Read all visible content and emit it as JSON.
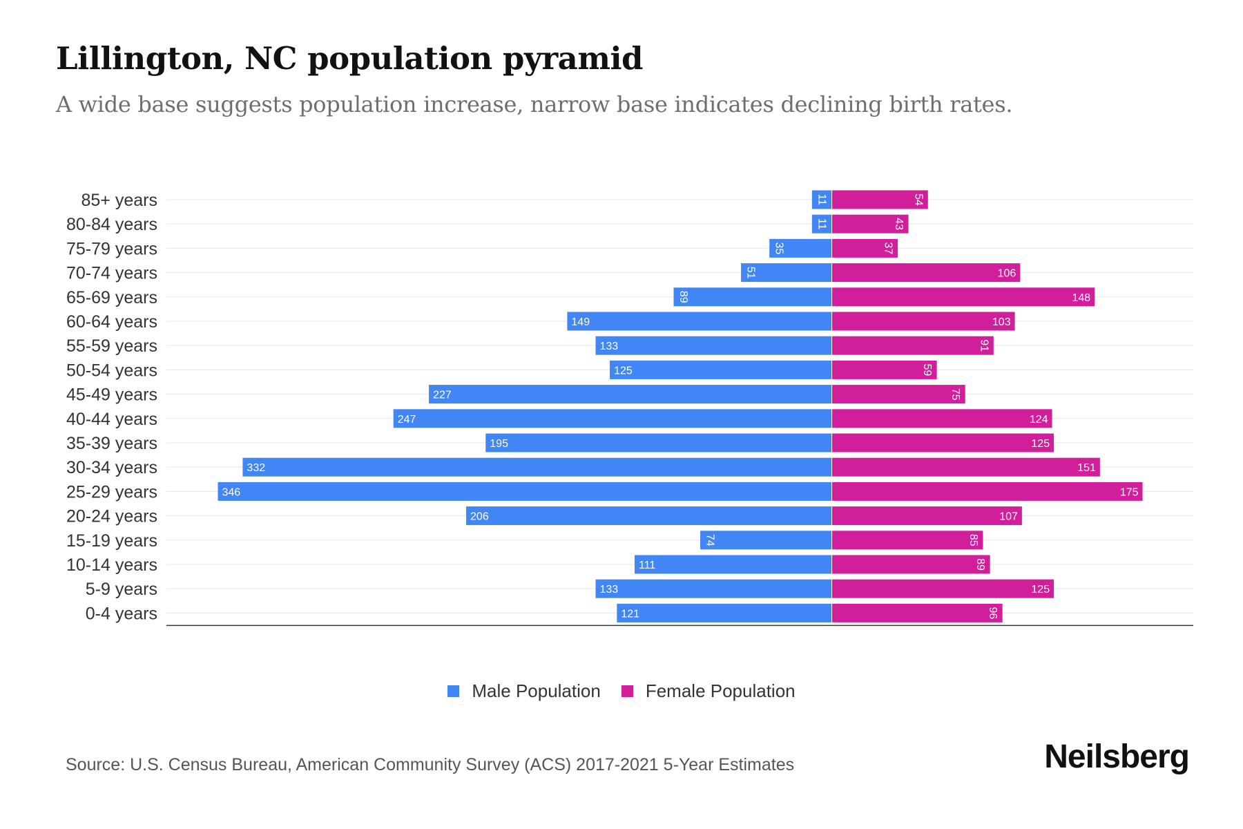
{
  "title": "Lillington, NC population pyramid",
  "subtitle": "A wide base suggests population increase, narrow base indicates declining birth rates.",
  "legend": {
    "male": "Male Population",
    "female": "Female Population"
  },
  "source": "Source: U.S. Census Bureau, American Community Survey (ACS) 2017-2021 5-Year Estimates",
  "brand": "Neilsberg",
  "colors": {
    "male": "#4285f4",
    "female": "#d11e9b",
    "grid": "#e6e6e6",
    "axis": "#333333"
  },
  "chart_data": {
    "type": "bar",
    "orientation": "horizontal-diverging",
    "title": "Lillington, NC population pyramid",
    "categories": [
      "85+ years",
      "80-84 years",
      "75-79 years",
      "70-74 years",
      "65-69 years",
      "60-64 years",
      "55-59 years",
      "50-54 years",
      "45-49 years",
      "40-44 years",
      "35-39 years",
      "30-34 years",
      "25-29 years",
      "20-24 years",
      "15-19 years",
      "10-14 years",
      "5-9 years",
      "0-4 years"
    ],
    "series": [
      {
        "name": "Male Population",
        "values": [
          11,
          11,
          35,
          51,
          89,
          149,
          133,
          125,
          227,
          247,
          195,
          332,
          346,
          206,
          74,
          111,
          133,
          121
        ]
      },
      {
        "name": "Female Population",
        "values": [
          54,
          43,
          37,
          106,
          148,
          103,
          91,
          59,
          75,
          124,
          125,
          151,
          175,
          107,
          85,
          89,
          125,
          96
        ]
      }
    ],
    "xlim": [
      -375,
      204
    ],
    "legend_position": "bottom-center"
  }
}
